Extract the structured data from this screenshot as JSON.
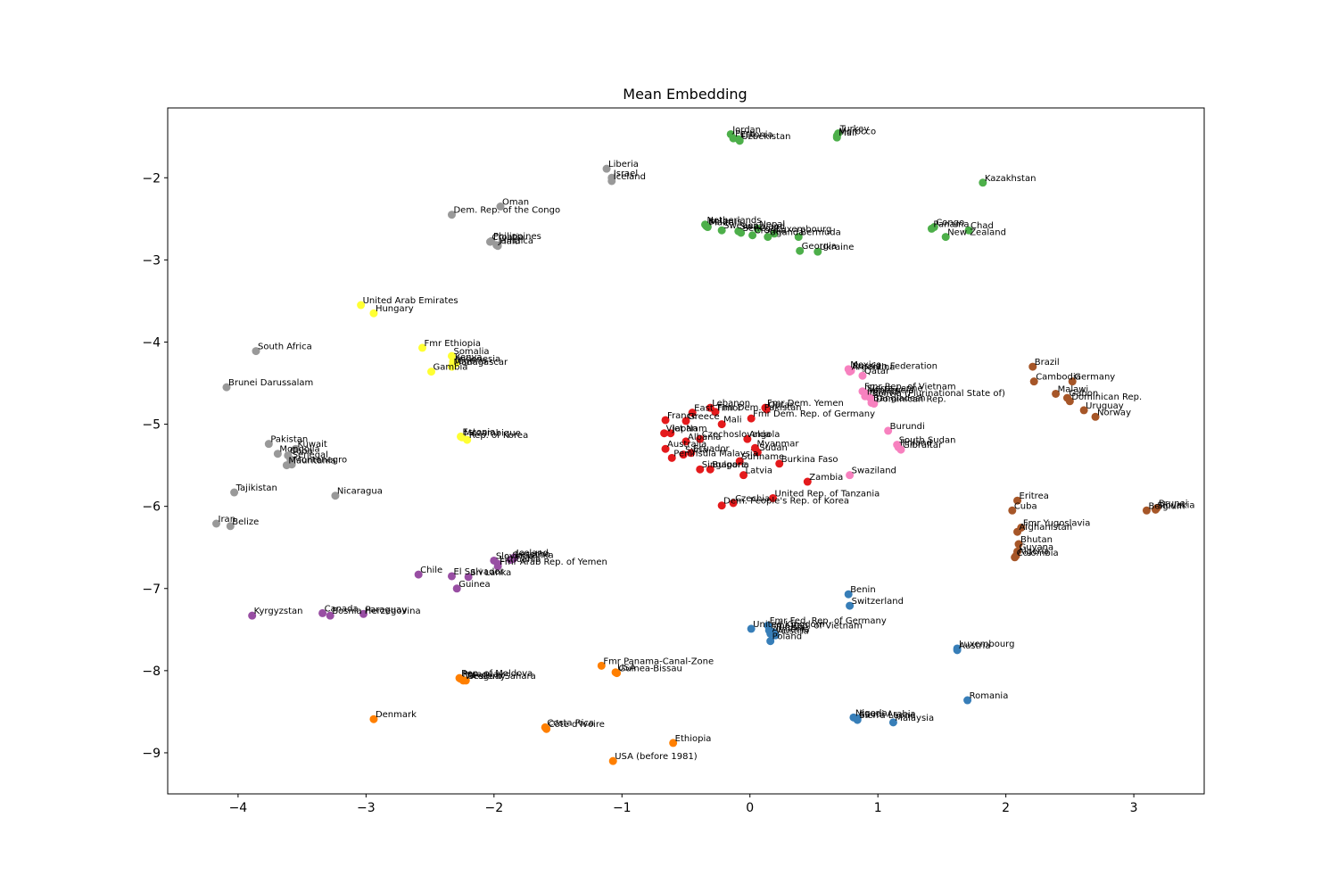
{
  "chart_data": {
    "type": "scatter",
    "title": "Mean Embedding",
    "xlabel": "",
    "ylabel": "",
    "xlim": [
      -4.55,
      3.55
    ],
    "ylim": [
      -9.5,
      -1.15
    ],
    "xticks": [
      -4,
      -3,
      -2,
      -1,
      0,
      1,
      2,
      3
    ],
    "yticks": [
      -9,
      -8,
      -7,
      -6,
      -5,
      -4,
      -3,
      -2
    ],
    "grid": false,
    "clusters": [
      {
        "color": "#4daf4a",
        "points": [
          {
            "label": "Jordan",
            "x": -0.15,
            "y": -1.47
          },
          {
            "label": "Peru",
            "x": -0.13,
            "y": -1.52
          },
          {
            "label": "Uzbekistan",
            "x": -0.08,
            "y": -1.55
          },
          {
            "label": "Estonia",
            "x": -0.09,
            "y": -1.53
          },
          {
            "label": "Turkey",
            "x": 0.69,
            "y": -1.46
          },
          {
            "label": "Mali",
            "x": 0.68,
            "y": -1.51
          },
          {
            "label": "Morocco",
            "x": 0.68,
            "y": -1.49
          },
          {
            "label": "Kazakhstan",
            "x": 1.82,
            "y": -2.06
          },
          {
            "label": "Netherlands",
            "x": -0.35,
            "y": -2.57
          },
          {
            "label": "Belarus",
            "x": -0.34,
            "y": -2.59
          },
          {
            "label": "Malta",
            "x": -0.33,
            "y": -2.6
          },
          {
            "label": "Sweden",
            "x": -0.22,
            "y": -2.64
          },
          {
            "label": "Swaziland",
            "x": -0.09,
            "y": -2.65
          },
          {
            "label": "Senegal",
            "x": -0.07,
            "y": -2.67
          },
          {
            "label": "Nepal",
            "x": 0.06,
            "y": -2.62
          },
          {
            "label": "Luxembourg",
            "x": 0.19,
            "y": -2.68
          },
          {
            "label": "Bermuda",
            "x": 0.38,
            "y": -2.72
          },
          {
            "label": "Uganda",
            "x": 0.14,
            "y": -2.72
          },
          {
            "label": "Croatia",
            "x": 0.02,
            "y": -2.7
          },
          {
            "label": "Georgia",
            "x": 0.39,
            "y": -2.89
          },
          {
            "label": "Ukraine",
            "x": 0.53,
            "y": -2.9
          },
          {
            "label": "Congo",
            "x": 1.44,
            "y": -2.6
          },
          {
            "label": "Panama",
            "x": 1.42,
            "y": -2.62
          },
          {
            "label": "Chad",
            "x": 1.71,
            "y": -2.64
          },
          {
            "label": "New Zealand",
            "x": 1.53,
            "y": -2.72
          }
        ]
      },
      {
        "color": "#999999",
        "points": [
          {
            "label": "Liberia",
            "x": -1.12,
            "y": -1.89
          },
          {
            "label": "Israel",
            "x": -1.08,
            "y": -2.0
          },
          {
            "label": "Iceland",
            "x": -1.08,
            "y": -2.04
          },
          {
            "label": "Oman",
            "x": -1.95,
            "y": -2.35
          },
          {
            "label": "Dem. Rep. of the Congo",
            "x": -2.33,
            "y": -2.45
          },
          {
            "label": "Philippines",
            "x": -2.02,
            "y": -2.77
          },
          {
            "label": "Croatia",
            "x": -2.03,
            "y": -2.78
          },
          {
            "label": "Jamaica",
            "x": -1.98,
            "y": -2.82
          },
          {
            "label": "Haiti",
            "x": -1.97,
            "y": -2.83
          },
          {
            "label": "South Africa",
            "x": -3.86,
            "y": -4.11
          },
          {
            "label": "Brunei Darussalam",
            "x": -4.09,
            "y": -4.55
          },
          {
            "label": "Pakistan",
            "x": -3.76,
            "y": -5.24
          },
          {
            "label": "Kuwait",
            "x": -3.55,
            "y": -5.3
          },
          {
            "label": "Mongolia",
            "x": -3.69,
            "y": -5.36
          },
          {
            "label": "Cuba",
            "x": -3.61,
            "y": -5.38
          },
          {
            "label": "Senegal",
            "x": -3.59,
            "y": -5.43
          },
          {
            "label": "Mauritania",
            "x": -3.62,
            "y": -5.5
          },
          {
            "label": "Montenegro",
            "x": -3.58,
            "y": -5.49
          },
          {
            "label": "Tajikistan",
            "x": -4.03,
            "y": -5.83
          },
          {
            "label": "Nicaragua",
            "x": -3.24,
            "y": -5.87
          },
          {
            "label": "Iran",
            "x": -4.17,
            "y": -6.21
          },
          {
            "label": "Belize",
            "x": -4.06,
            "y": -6.24
          }
        ]
      },
      {
        "color": "#ffff33",
        "points": [
          {
            "label": "United Arab Emirates",
            "x": -3.04,
            "y": -3.55
          },
          {
            "label": "Hungary",
            "x": -2.94,
            "y": -3.65
          },
          {
            "label": "Fmr Ethiopia",
            "x": -2.56,
            "y": -4.07
          },
          {
            "label": "Somalia",
            "x": -2.33,
            "y": -4.17
          },
          {
            "label": "Kenya",
            "x": -2.32,
            "y": -4.24
          },
          {
            "label": "Nigeria",
            "x": -2.32,
            "y": -4.28
          },
          {
            "label": "Indonesia",
            "x": -2.3,
            "y": -4.26
          },
          {
            "label": "Madagascar",
            "x": -2.33,
            "y": -4.3
          },
          {
            "label": "Gambia",
            "x": -2.49,
            "y": -4.36
          },
          {
            "label": "Estonia",
            "x": -2.26,
            "y": -5.15
          },
          {
            "label": "Mozambique",
            "x": -2.25,
            "y": -5.16
          },
          {
            "label": "Rep. of Korea",
            "x": -2.21,
            "y": -5.19
          }
        ]
      },
      {
        "color": "#e41a1c",
        "points": [
          {
            "label": "Lebanon",
            "x": -0.31,
            "y": -4.8
          },
          {
            "label": "Fmr Dem. Yemen",
            "x": 0.12,
            "y": -4.8
          },
          {
            "label": "East Timor",
            "x": -0.45,
            "y": -4.86
          },
          {
            "label": "Fmr Dem. Pakistan",
            "x": -0.27,
            "y": -4.85
          },
          {
            "label": "Qatar",
            "x": 0.13,
            "y": -4.82
          },
          {
            "label": "France",
            "x": -0.66,
            "y": -4.95
          },
          {
            "label": "Greece",
            "x": -0.5,
            "y": -4.96
          },
          {
            "label": "Mali",
            "x": -0.22,
            "y": -5.0
          },
          {
            "label": "Fmr Dem. Rep. of Germany",
            "x": 0.01,
            "y": -4.93
          },
          {
            "label": "Viet Nam",
            "x": -0.67,
            "y": -5.11
          },
          {
            "label": "Japan",
            "x": -0.62,
            "y": -5.11
          },
          {
            "label": "Albania",
            "x": -0.5,
            "y": -5.21
          },
          {
            "label": "Czechoslovakia",
            "x": -0.39,
            "y": -5.18
          },
          {
            "label": "Angola",
            "x": -0.02,
            "y": -5.18
          },
          {
            "label": "Australia",
            "x": -0.66,
            "y": -5.3
          },
          {
            "label": "Ecuador",
            "x": -0.46,
            "y": -5.35
          },
          {
            "label": "Myanmar",
            "x": 0.04,
            "y": -5.29
          },
          {
            "label": "Peninsula Malaysia",
            "x": -0.61,
            "y": -5.41
          },
          {
            "label": "Syria",
            "x": -0.52,
            "y": -5.37
          },
          {
            "label": "Sudan",
            "x": 0.06,
            "y": -5.34
          },
          {
            "label": "Suriname",
            "x": -0.08,
            "y": -5.45
          },
          {
            "label": "Burkina Faso",
            "x": 0.23,
            "y": -5.48
          },
          {
            "label": "Singapore",
            "x": -0.39,
            "y": -5.55
          },
          {
            "label": "Bulgaria",
            "x": -0.31,
            "y": -5.55
          },
          {
            "label": "Latvia",
            "x": -0.05,
            "y": -5.62
          },
          {
            "label": "Zambia",
            "x": 0.45,
            "y": -5.7
          },
          {
            "label": "United Rep. of Tanzania",
            "x": 0.18,
            "y": -5.9
          },
          {
            "label": "Czechia",
            "x": -0.13,
            "y": -5.96
          },
          {
            "label": "Dem. People's Rep. of Korea",
            "x": -0.22,
            "y": -5.99
          }
        ]
      },
      {
        "color": "#f781bf",
        "points": [
          {
            "label": "Mexico",
            "x": 0.77,
            "y": -4.33
          },
          {
            "label": "Russian Federation",
            "x": 0.79,
            "y": -4.35
          },
          {
            "label": "Argentina",
            "x": 0.78,
            "y": -4.36
          },
          {
            "label": "Qatar",
            "x": 0.88,
            "y": -4.41
          },
          {
            "label": "Fmr Rep. of Vietnam",
            "x": 0.88,
            "y": -4.6
          },
          {
            "label": "Sierra Leone",
            "x": 0.9,
            "y": -4.62
          },
          {
            "label": "Venezuela",
            "x": 0.91,
            "y": -4.64
          },
          {
            "label": "Ireland",
            "x": 0.9,
            "y": -4.66
          },
          {
            "label": "Bolivia (Plurinational State of)",
            "x": 0.94,
            "y": -4.68
          },
          {
            "label": "Bangladesh",
            "x": 0.95,
            "y": -4.74
          },
          {
            "label": "Dominican Rep.",
            "x": 0.97,
            "y": -4.75
          },
          {
            "label": "Burundi",
            "x": 1.08,
            "y": -5.08
          },
          {
            "label": "South Sudan",
            "x": 1.15,
            "y": -5.25
          },
          {
            "label": "Finland",
            "x": 1.16,
            "y": -5.28
          },
          {
            "label": "Gibraltar",
            "x": 1.18,
            "y": -5.31
          },
          {
            "label": "Swaziland",
            "x": 0.78,
            "y": -5.62
          }
        ]
      },
      {
        "color": "#a65628",
        "points": [
          {
            "label": "Brazil",
            "x": 2.21,
            "y": -4.3
          },
          {
            "label": "Cambodia",
            "x": 2.22,
            "y": -4.48
          },
          {
            "label": "Germany",
            "x": 2.52,
            "y": -4.48
          },
          {
            "label": "Malawi",
            "x": 2.39,
            "y": -4.63
          },
          {
            "label": "Gabon",
            "x": 2.48,
            "y": -4.68
          },
          {
            "label": "Dominican Rep.",
            "x": 2.5,
            "y": -4.72
          },
          {
            "label": "Uruguay",
            "x": 2.61,
            "y": -4.83
          },
          {
            "label": "Norway",
            "x": 2.7,
            "y": -4.91
          },
          {
            "label": "Eritrea",
            "x": 2.09,
            "y": -5.93
          },
          {
            "label": "Cuba",
            "x": 2.05,
            "y": -6.05
          },
          {
            "label": "Belgium",
            "x": 3.1,
            "y": -6.05
          },
          {
            "label": "Slovakia",
            "x": 3.17,
            "y": -6.04
          },
          {
            "label": "Brunei",
            "x": 3.18,
            "y": -6.02
          },
          {
            "label": "Fmr Yugoslavia",
            "x": 2.12,
            "y": -6.26
          },
          {
            "label": "Afghanistan",
            "x": 2.09,
            "y": -6.31
          },
          {
            "label": "Bhutan",
            "x": 2.1,
            "y": -6.46
          },
          {
            "label": "Guyana",
            "x": 2.09,
            "y": -6.55
          },
          {
            "label": "Algeria",
            "x": 2.08,
            "y": -6.6
          },
          {
            "label": "Colombia",
            "x": 2.07,
            "y": -6.62
          }
        ]
      },
      {
        "color": "#984ea3",
        "points": [
          {
            "label": "Iceland",
            "x": -1.84,
            "y": -6.62
          },
          {
            "label": "Lesotho",
            "x": -1.85,
            "y": -6.64
          },
          {
            "label": "Sri Lanka",
            "x": -1.87,
            "y": -6.65
          },
          {
            "label": "Slovenia",
            "x": -2.0,
            "y": -6.66
          },
          {
            "label": "Lithuania",
            "x": -1.97,
            "y": -6.7
          },
          {
            "label": "Fmr Arab Rep. of Yemen",
            "x": -1.97,
            "y": -6.73
          },
          {
            "label": "Chile",
            "x": -2.59,
            "y": -6.83
          },
          {
            "label": "El Salvador",
            "x": -2.33,
            "y": -6.85
          },
          {
            "label": "Sri Lanka",
            "x": -2.2,
            "y": -6.86
          },
          {
            "label": "Guinea",
            "x": -2.29,
            "y": -7.0
          },
          {
            "label": "Kyrgyzstan",
            "x": -3.89,
            "y": -7.33
          },
          {
            "label": "Canada",
            "x": -3.34,
            "y": -7.3
          },
          {
            "label": "Bosnia Herzegovina",
            "x": -3.28,
            "y": -7.33
          },
          {
            "label": "Paraguay",
            "x": -3.02,
            "y": -7.31
          }
        ]
      },
      {
        "color": "#377eb8",
        "points": [
          {
            "label": "Benin",
            "x": 0.77,
            "y": -7.07
          },
          {
            "label": "Switzerland",
            "x": 0.78,
            "y": -7.21
          },
          {
            "label": "Fmr Fed. Rep. of Germany",
            "x": 0.14,
            "y": -7.45
          },
          {
            "label": "United Kingdom",
            "x": 0.01,
            "y": -7.49
          },
          {
            "label": "Fmr Rep. of Vietnam",
            "x": 0.15,
            "y": -7.51
          },
          {
            "label": "Tunisia",
            "x": 0.18,
            "y": -7.53
          },
          {
            "label": "Armenia",
            "x": 0.16,
            "y": -7.55
          },
          {
            "label": "Austria",
            "x": 0.2,
            "y": -7.57
          },
          {
            "label": "Poland",
            "x": 0.16,
            "y": -7.64
          },
          {
            "label": "Luxembourg",
            "x": 1.62,
            "y": -7.73
          },
          {
            "label": "Austria",
            "x": 1.62,
            "y": -7.75
          },
          {
            "label": "Romania",
            "x": 1.7,
            "y": -8.36
          },
          {
            "label": "Nigeria",
            "x": 0.81,
            "y": -8.57
          },
          {
            "label": "Saudi Arabia",
            "x": 0.84,
            "y": -8.58
          },
          {
            "label": "Sierra Leone",
            "x": 0.84,
            "y": -8.6
          },
          {
            "label": "Malaysia",
            "x": 1.12,
            "y": -8.63
          }
        ]
      },
      {
        "color": "#ff7f00",
        "points": [
          {
            "label": "Fmr Panama-Canal-Zone",
            "x": -1.16,
            "y": -7.94
          },
          {
            "label": "Guinea-Bissau",
            "x": -1.04,
            "y": -8.03
          },
          {
            "label": "USA",
            "x": -1.05,
            "y": -8.02
          },
          {
            "label": "Rep. of Moldova",
            "x": -2.27,
            "y": -8.09
          },
          {
            "label": "Paraguay",
            "x": -2.26,
            "y": -8.1
          },
          {
            "label": "Western Sahara",
            "x": -2.24,
            "y": -8.12
          },
          {
            "label": "Uruguay",
            "x": -2.22,
            "y": -8.12
          },
          {
            "label": "Denmark",
            "x": -2.94,
            "y": -8.59
          },
          {
            "label": "Costa Rica",
            "x": -1.6,
            "y": -8.69
          },
          {
            "label": "Côte d'Ivoire",
            "x": -1.59,
            "y": -8.71
          },
          {
            "label": "Ethiopia",
            "x": -0.6,
            "y": -8.88
          },
          {
            "label": "USA (before 1981)",
            "x": -1.07,
            "y": -9.1
          }
        ]
      }
    ]
  }
}
